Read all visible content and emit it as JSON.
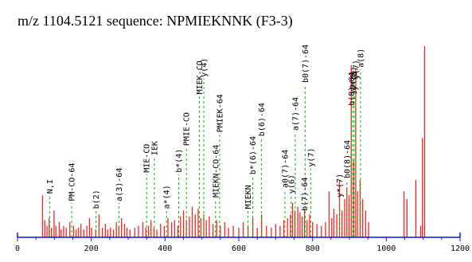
{
  "chart_data": {
    "type": "bar",
    "title": "m/z 1104.5121 sequence: NPMIEKNNK (F3-3)",
    "xlabel": "",
    "ylabel": "",
    "xlim": [
      0,
      1200
    ],
    "ylim": [
      0,
      100
    ],
    "x_ticks": [
      0,
      200,
      400,
      600,
      800,
      1000,
      1200
    ],
    "grid": false,
    "colors": {
      "peaks": "#ff2020",
      "annotation_line": "#00bb00",
      "axis": "#1010ff",
      "text": "#000000"
    },
    "peaks": [
      {
        "x": 68,
        "y": 22
      },
      {
        "x": 74,
        "y": 9
      },
      {
        "x": 80,
        "y": 6
      },
      {
        "x": 86,
        "y": 10
      },
      {
        "x": 92,
        "y": 5
      },
      {
        "x": 99,
        "y": 14
      },
      {
        "x": 104,
        "y": 6
      },
      {
        "x": 113,
        "y": 8
      },
      {
        "x": 118,
        "y": 4
      },
      {
        "x": 125,
        "y": 6
      },
      {
        "x": 132,
        "y": 5
      },
      {
        "x": 142,
        "y": 8
      },
      {
        "x": 152,
        "y": 6
      },
      {
        "x": 159,
        "y": 4
      },
      {
        "x": 165,
        "y": 5
      },
      {
        "x": 172,
        "y": 7
      },
      {
        "x": 180,
        "y": 4
      },
      {
        "x": 188,
        "y": 6
      },
      {
        "x": 195,
        "y": 10
      },
      {
        "x": 201,
        "y": 5
      },
      {
        "x": 212,
        "y": 4
      },
      {
        "x": 221,
        "y": 12
      },
      {
        "x": 230,
        "y": 5
      },
      {
        "x": 238,
        "y": 7
      },
      {
        "x": 245,
        "y": 4
      },
      {
        "x": 252,
        "y": 5
      },
      {
        "x": 260,
        "y": 4
      },
      {
        "x": 268,
        "y": 8
      },
      {
        "x": 275,
        "y": 6
      },
      {
        "x": 282,
        "y": 10
      },
      {
        "x": 290,
        "y": 7
      },
      {
        "x": 297,
        "y": 5
      },
      {
        "x": 305,
        "y": 4
      },
      {
        "x": 318,
        "y": 5
      },
      {
        "x": 328,
        "y": 6
      },
      {
        "x": 340,
        "y": 8
      },
      {
        "x": 348,
        "y": 5
      },
      {
        "x": 355,
        "y": 6
      },
      {
        "x": 362,
        "y": 9
      },
      {
        "x": 370,
        "y": 5
      },
      {
        "x": 378,
        "y": 4
      },
      {
        "x": 388,
        "y": 7
      },
      {
        "x": 398,
        "y": 6
      },
      {
        "x": 408,
        "y": 10
      },
      {
        "x": 418,
        "y": 8
      },
      {
        "x": 426,
        "y": 9
      },
      {
        "x": 435,
        "y": 6
      },
      {
        "x": 442,
        "y": 11
      },
      {
        "x": 450,
        "y": 14
      },
      {
        "x": 458,
        "y": 9
      },
      {
        "x": 466,
        "y": 11
      },
      {
        "x": 474,
        "y": 16
      },
      {
        "x": 482,
        "y": 12
      },
      {
        "x": 490,
        "y": 15
      },
      {
        "x": 497,
        "y": 10
      },
      {
        "x": 505,
        "y": 12
      },
      {
        "x": 512,
        "y": 9
      },
      {
        "x": 520,
        "y": 11
      },
      {
        "x": 530,
        "y": 7
      },
      {
        "x": 540,
        "y": 9
      },
      {
        "x": 550,
        "y": 6
      },
      {
        "x": 562,
        "y": 8
      },
      {
        "x": 572,
        "y": 5
      },
      {
        "x": 585,
        "y": 6
      },
      {
        "x": 600,
        "y": 5
      },
      {
        "x": 612,
        "y": 8
      },
      {
        "x": 625,
        "y": 6
      },
      {
        "x": 638,
        "y": 10
      },
      {
        "x": 650,
        "y": 5
      },
      {
        "x": 662,
        "y": 12
      },
      {
        "x": 675,
        "y": 6
      },
      {
        "x": 688,
        "y": 5
      },
      {
        "x": 700,
        "y": 7
      },
      {
        "x": 712,
        "y": 6
      },
      {
        "x": 722,
        "y": 9
      },
      {
        "x": 732,
        "y": 10
      },
      {
        "x": 740,
        "y": 12
      },
      {
        "x": 746,
        "y": 18
      },
      {
        "x": 752,
        "y": 14
      },
      {
        "x": 760,
        "y": 16
      },
      {
        "x": 766,
        "y": 13
      },
      {
        "x": 772,
        "y": 11
      },
      {
        "x": 778,
        "y": 15
      },
      {
        "x": 785,
        "y": 9
      },
      {
        "x": 792,
        "y": 12
      },
      {
        "x": 800,
        "y": 8
      },
      {
        "x": 812,
        "y": 7
      },
      {
        "x": 824,
        "y": 6
      },
      {
        "x": 835,
        "y": 8
      },
      {
        "x": 845,
        "y": 24
      },
      {
        "x": 852,
        "y": 10
      },
      {
        "x": 858,
        "y": 15
      },
      {
        "x": 866,
        "y": 12
      },
      {
        "x": 873,
        "y": 30
      },
      {
        "x": 880,
        "y": 14
      },
      {
        "x": 887,
        "y": 20
      },
      {
        "x": 893,
        "y": 26
      },
      {
        "x": 899,
        "y": 22
      },
      {
        "x": 905,
        "y": 90
      },
      {
        "x": 911,
        "y": 40
      },
      {
        "x": 917,
        "y": 88
      },
      {
        "x": 922,
        "y": 24
      },
      {
        "x": 929,
        "y": 30
      },
      {
        "x": 936,
        "y": 20
      },
      {
        "x": 944,
        "y": 14
      },
      {
        "x": 952,
        "y": 8
      },
      {
        "x": 1048,
        "y": 24
      },
      {
        "x": 1056,
        "y": 20
      },
      {
        "x": 1080,
        "y": 30
      },
      {
        "x": 1093,
        "y": 6
      },
      {
        "x": 1098,
        "y": 52
      },
      {
        "x": 1104,
        "y": 100
      }
    ],
    "annotations": [
      {
        "label": "N,I",
        "x": 87,
        "top": 22
      },
      {
        "label": "PM-CO-64",
        "x": 147,
        "top": 18
      },
      {
        "label": "b(2)",
        "x": 213,
        "top": 14
      },
      {
        "label": "a(3)-64",
        "x": 275,
        "top": 18
      },
      {
        "label": "MIE-CO",
        "x": 350,
        "top": 33
      },
      {
        "label": "IEK",
        "x": 371,
        "top": 42
      },
      {
        "label": "a*(4)",
        "x": 404,
        "top": 14
      },
      {
        "label": "b*(4)",
        "x": 437,
        "top": 33
      },
      {
        "label": "PMIE-CO",
        "x": 458,
        "top": 47
      },
      {
        "label": "MIEK-CO",
        "x": 493,
        "top": 74
      },
      {
        "label": "y(4)",
        "x": 505,
        "top": 83
      },
      {
        "label": "MIEKN-CO-64",
        "x": 537,
        "top": 20
      },
      {
        "label": "PMIEK-64",
        "x": 548,
        "top": 54
      },
      {
        "label": "MIEKN",
        "x": 625,
        "top": 14
      },
      {
        "label": "b*(6)-64",
        "x": 638,
        "top": 32
      },
      {
        "label": "b(6)-64",
        "x": 661,
        "top": 52
      },
      {
        "label": "a0(7)-64",
        "x": 725,
        "top": 25
      },
      {
        "label": "y(6)",
        "x": 742,
        "top": 22
      },
      {
        "label": "a(7)-64",
        "x": 753,
        "top": 55
      },
      {
        "label": "b(7)-64",
        "x": 778,
        "top": 13
      },
      {
        "label": "b0(7)-64",
        "x": 780,
        "top": 80
      },
      {
        "label": "y(7)",
        "x": 795,
        "top": 36
      },
      {
        "label": "y*(7)",
        "x": 873,
        "top": 20
      },
      {
        "label": "b0(8)-64",
        "x": 893,
        "top": 30
      },
      {
        "label": "b(8)-64",
        "x": 905,
        "top": 68
      },
      {
        "label": "y0(8)",
        "x": 909,
        "top": 74
      },
      {
        "label": "y*(8)",
        "x": 913,
        "top": 76
      },
      {
        "label": "y(7)",
        "x": 917,
        "top": 82
      },
      {
        "label": "a(8)",
        "x": 930,
        "top": 88
      }
    ]
  }
}
